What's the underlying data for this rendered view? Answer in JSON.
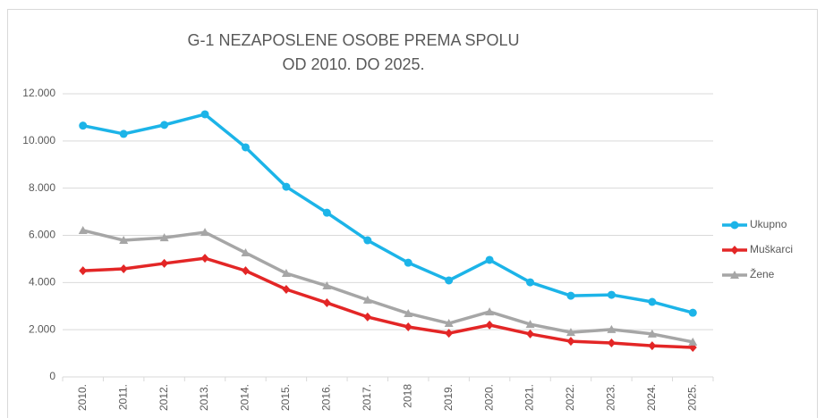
{
  "chart_data": {
    "type": "line",
    "title": [
      "G-1 NEZAPOSLENE OSOBE PREMA SPOLU",
      "OD 2010. DO 2025."
    ],
    "categories": [
      "2010.",
      "2011.",
      "2012.",
      "2013.",
      "2014.",
      "2015.",
      "2016.",
      "2017.",
      "2018",
      "2019.",
      "2020.",
      "2021.",
      "2022.",
      "2023.",
      "2024.",
      "2025."
    ],
    "series": [
      {
        "name": "Ukupno",
        "color": "#1cb4e8",
        "marker": "circle",
        "values": [
          10650,
          10300,
          10680,
          11130,
          9730,
          8060,
          6960,
          5790,
          4840,
          4090,
          4960,
          4010,
          3440,
          3480,
          3180,
          2720
        ]
      },
      {
        "name": "Muškarci",
        "color": "#e32626",
        "marker": "diamond",
        "values": [
          4500,
          4580,
          4810,
          5030,
          4500,
          3710,
          3140,
          2540,
          2120,
          1850,
          2200,
          1820,
          1510,
          1440,
          1320,
          1250
        ]
      },
      {
        "name": "Žene",
        "color": "#a6a6a6",
        "marker": "triangle",
        "values": [
          6210,
          5790,
          5900,
          6130,
          5260,
          4390,
          3860,
          3260,
          2690,
          2270,
          2760,
          2230,
          1890,
          2010,
          1820,
          1480
        ]
      }
    ],
    "ylim": [
      0,
      12000
    ],
    "yticks": [
      0,
      {
        "value": 2000,
        "label": "2.000"
      },
      {
        "value": 4000,
        "label": "4.000"
      },
      {
        "value": 6000,
        "label": "6.000"
      },
      {
        "value": 8000,
        "label": "8.000"
      },
      {
        "value": 10000,
        "label": "10.000"
      },
      {
        "value": 12000,
        "label": "12.000"
      }
    ],
    "grid": true,
    "legend": "right"
  }
}
